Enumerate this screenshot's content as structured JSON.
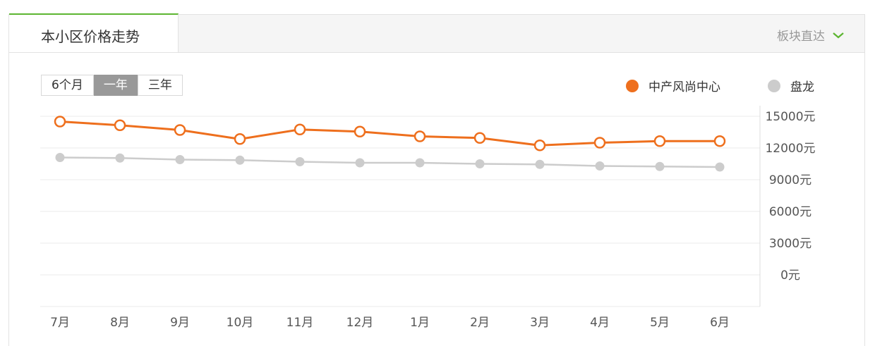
{
  "header": {
    "title": "本小区价格走势",
    "block_link": "板块直达"
  },
  "period": {
    "options": [
      "6个月",
      "一年",
      "三年"
    ],
    "selected": "一年"
  },
  "colors": {
    "accent": "#5cb531",
    "series1": "#ee6f1d",
    "series2": "#cccccc"
  },
  "chart_data": {
    "type": "line",
    "title": "",
    "xlabel": "",
    "ylabel": "",
    "categories": [
      "7月",
      "8月",
      "9月",
      "10月",
      "11月",
      "12月",
      "1月",
      "2月",
      "3月",
      "4月",
      "5月",
      "6月"
    ],
    "y_ticks": [
      "15000元",
      "12000元",
      "9000元",
      "6000元",
      "3000元",
      "0元"
    ],
    "ylim": [
      0,
      15000
    ],
    "grid": true,
    "legend_position": "top-right",
    "series": [
      {
        "name": "中产风尚中心",
        "color": "#ee6f1d",
        "values": [
          14500,
          14150,
          13700,
          12850,
          13750,
          13550,
          13100,
          12950,
          12250,
          12500,
          12650,
          12650
        ]
      },
      {
        "name": "盘龙",
        "color": "#cccccc",
        "values": [
          11100,
          11050,
          10900,
          10850,
          10700,
          10600,
          10600,
          10500,
          10450,
          10300,
          10250,
          10200
        ]
      }
    ]
  }
}
